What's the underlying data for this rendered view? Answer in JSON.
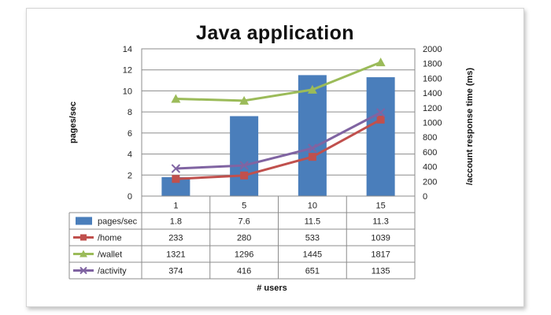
{
  "chart_data": {
    "type": "bar",
    "title": "Java application",
    "xlabel": "# users",
    "ylabel": "pages/sec",
    "y2label": "/account response time (ms)",
    "categories": [
      "1",
      "5",
      "10",
      "15"
    ],
    "ylim": [
      0,
      14
    ],
    "y_ticks": [
      "0",
      "2",
      "4",
      "6",
      "8",
      "10",
      "12",
      "14"
    ],
    "y2lim": [
      0,
      2000
    ],
    "y2_ticks": [
      "0",
      "200",
      "400",
      "600",
      "800",
      "1000",
      "1200",
      "1400",
      "1600",
      "1800",
      "2000"
    ],
    "series": [
      {
        "name": "pages/sec",
        "type": "bar",
        "axis": "left",
        "color": "#4a7ebb",
        "values": [
          1.8,
          7.6,
          11.5,
          11.3
        ]
      },
      {
        "name": "/home",
        "type": "line",
        "axis": "right",
        "color": "#c0504d",
        "marker": "square",
        "values": [
          233,
          280,
          533,
          1039
        ]
      },
      {
        "name": "/wallet",
        "type": "line",
        "axis": "right",
        "color": "#9bbb59",
        "marker": "triangle",
        "values": [
          1321,
          1296,
          1445,
          1817
        ]
      },
      {
        "name": "/activity",
        "type": "line",
        "axis": "right",
        "color": "#8064a2",
        "marker": "x",
        "values": [
          374,
          416,
          651,
          1135
        ]
      }
    ],
    "grid": true,
    "legend": "data table"
  }
}
